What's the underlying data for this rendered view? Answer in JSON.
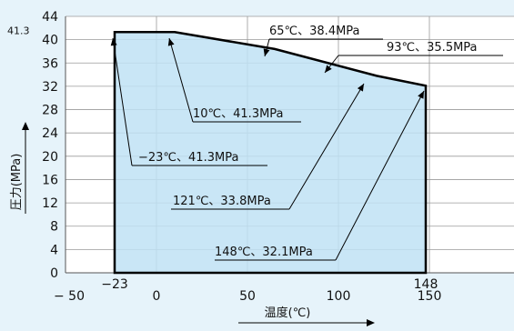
{
  "chart_data": {
    "type": "area",
    "xlabel": "温度(℃)",
    "ylabel": "圧力(MPa)",
    "xlim": [
      -50,
      200
    ],
    "ylim": [
      0,
      44
    ],
    "x_ticks": [
      -50,
      0,
      50,
      100,
      150
    ],
    "y_ticks": [
      0,
      4,
      8,
      12,
      16,
      20,
      24,
      28,
      32,
      36,
      40,
      44
    ],
    "extra_x_ticks": [
      {
        "value": -23,
        "label": "−23"
      },
      {
        "value": 148,
        "label": "148"
      }
    ],
    "extra_y_ticks": [
      {
        "value": 41.3,
        "label": "41.3"
      }
    ],
    "grid": true,
    "series": [
      {
        "x": [
          -23,
          10,
          65,
          121,
          148
        ],
        "y": [
          41.3,
          41.3,
          38.4,
          33.8,
          32.1
        ]
      }
    ],
    "annotations": [
      {
        "label": "65℃、38.4MPa"
      },
      {
        "label": "93℃、35.5MPa"
      },
      {
        "label": "10℃、41.3MPa"
      },
      {
        "label": "−23℃、41.3MPa"
      },
      {
        "label": "121℃、33.8MPa"
      },
      {
        "label": "148℃、32.1MPa"
      }
    ],
    "colors": {
      "background": "#e6f3fa",
      "plot_area": "#ffffff",
      "fill": "#bfe2f4",
      "grid": "#9a9a9a",
      "line": "#000000"
    }
  }
}
